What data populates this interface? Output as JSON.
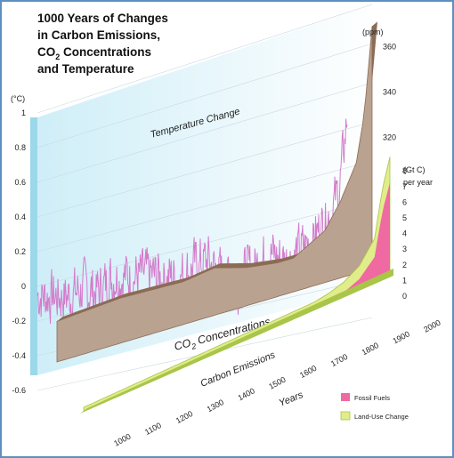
{
  "title": {
    "line1": "1000 Years of Changes",
    "line2": "in Carbon Emissions,",
    "line3_pre": "CO",
    "line3_sub": "2",
    "line3_post": " Concentrations",
    "line4": "and Temperature"
  },
  "colors": {
    "temperature_panel": "#dff2f9",
    "temperature_edge": "#9ad8ea",
    "temperature_line": "#d37ccb",
    "co2_fill": "#b9a28f",
    "co2_edge": "#8c6b55",
    "fossil_fuels": "#ee6aa0",
    "land_use": "#e1ec8a",
    "land_use_edge": "#a9c54a"
  },
  "chart_data": {
    "type": "area",
    "years": [
      "1000",
      "1100",
      "1200",
      "1300",
      "1400",
      "1500",
      "1600",
      "1700",
      "1800",
      "1900",
      "2000"
    ],
    "x_title": "Years",
    "temperature": {
      "label": "Temperature Change",
      "unit": "(°C)",
      "ticks": [
        "1",
        "0.8",
        "0.6",
        "0.4",
        "0.2",
        "0",
        "-0.2",
        "-0.4",
        "-0.6"
      ],
      "ylim": [
        -0.6,
        1.0
      ],
      "series": [
        [
          1000,
          -0.05
        ],
        [
          1050,
          -0.08
        ],
        [
          1100,
          -0.1
        ],
        [
          1150,
          -0.08
        ],
        [
          1200,
          -0.12
        ],
        [
          1250,
          -0.05
        ],
        [
          1300,
          -0.08
        ],
        [
          1350,
          -0.1
        ],
        [
          1400,
          -0.12
        ],
        [
          1450,
          -0.15
        ],
        [
          1500,
          -0.12
        ],
        [
          1550,
          -0.1
        ],
        [
          1600,
          -0.22
        ],
        [
          1650,
          -0.25
        ],
        [
          1700,
          -0.2
        ],
        [
          1750,
          -0.15
        ],
        [
          1800,
          -0.2
        ],
        [
          1850,
          -0.18
        ],
        [
          1900,
          -0.1
        ],
        [
          1950,
          0.0
        ],
        [
          1975,
          0.1
        ],
        [
          2000,
          0.45
        ]
      ]
    },
    "co2": {
      "label": "CO2 Concentrations",
      "label_pre": "CO",
      "label_sub": "2",
      "label_post": " Concentrations",
      "unit": "(ppm)",
      "ticks": [
        "360",
        "340",
        "320"
      ],
      "ylim": [
        270,
        370
      ],
      "series": [
        [
          1000,
          280
        ],
        [
          1200,
          282
        ],
        [
          1400,
          281
        ],
        [
          1500,
          283
        ],
        [
          1600,
          279
        ],
        [
          1700,
          277
        ],
        [
          1750,
          277
        ],
        [
          1800,
          281
        ],
        [
          1850,
          285
        ],
        [
          1900,
          296
        ],
        [
          1950,
          311
        ],
        [
          1975,
          331
        ],
        [
          2000,
          369
        ]
      ]
    },
    "emissions": {
      "label": "Carbon Emissions",
      "unit": "(Gt C)",
      "unit2": "per year",
      "ticks": [
        "8",
        "7",
        "6",
        "5",
        "4",
        "3",
        "2",
        "1",
        "0"
      ],
      "ylim": [
        0,
        8
      ],
      "series": [
        {
          "name": "Fossil Fuels",
          "values": [
            [
              1000,
              0
            ],
            [
              1750,
              0
            ],
            [
              1800,
              0.01
            ],
            [
              1850,
              0.05
            ],
            [
              1900,
              0.5
            ],
            [
              1950,
              1.6
            ],
            [
              1975,
              4.6
            ],
            [
              2000,
              6.5
            ]
          ]
        },
        {
          "name": "Land-Use Change",
          "values": [
            [
              1000,
              0
            ],
            [
              1750,
              0.05
            ],
            [
              1800,
              0.2
            ],
            [
              1850,
              0.5
            ],
            [
              1900,
              0.7
            ],
            [
              1950,
              1.1
            ],
            [
              1975,
              1.4
            ],
            [
              2000,
              1.6
            ]
          ]
        }
      ]
    },
    "legend": {
      "position": "bottom-right",
      "items": [
        {
          "label": "Fossil Fuels",
          "color": "#ee6aa0"
        },
        {
          "label": "Land-Use Change",
          "color": "#e1ec8a"
        }
      ]
    }
  }
}
